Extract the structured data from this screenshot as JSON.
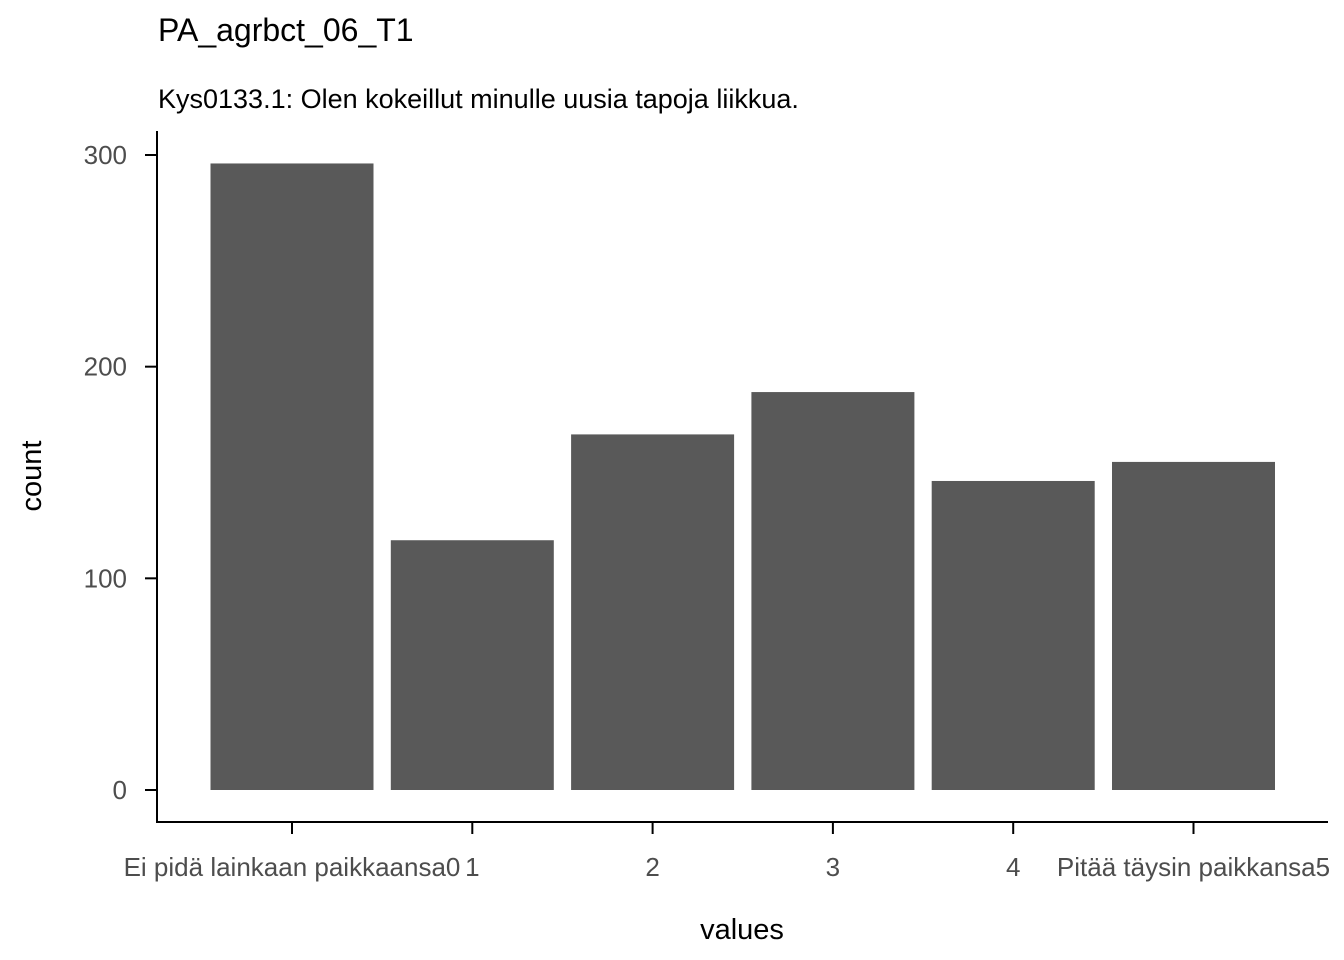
{
  "chart_data": {
    "type": "bar",
    "title": "PA_agrbct_06_T1",
    "subtitle": "Kys0133.1: Olen kokeillut minulle uusia tapoja liikkua.",
    "xlabel": "values",
    "ylabel": "count",
    "categories": [
      "Ei pidä lainkaan paikkaansa0",
      "1",
      "2",
      "3",
      "4",
      "Pitää täysin paikkansa5"
    ],
    "values": [
      296,
      118,
      168,
      188,
      146,
      155
    ],
    "ylim": [
      0,
      300
    ],
    "yticks": [
      0,
      100,
      200,
      300
    ],
    "bar_color": "#595959",
    "grid": false
  }
}
